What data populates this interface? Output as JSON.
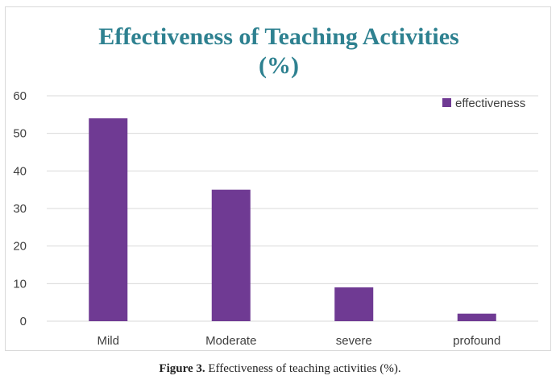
{
  "chart_data": {
    "type": "bar",
    "title_line1": "Effectiveness of Teaching Activities",
    "title_line2": "(%)",
    "categories": [
      "Mild",
      "Moderate",
      "severe",
      "profound"
    ],
    "series": [
      {
        "name": "effectiveness",
        "values": [
          54,
          35,
          9,
          2
        ]
      }
    ],
    "ylim": [
      0,
      60
    ],
    "yticks": [
      0,
      10,
      20,
      30,
      40,
      50,
      60
    ],
    "grid": true,
    "legend": "top-right",
    "colors": {
      "bar": "#6f3a93",
      "title": "#2e8190",
      "grid": "#d9d9d9",
      "axis_text": "#404040"
    }
  },
  "caption": {
    "label": "Figure 3.",
    "text": " Effectiveness of teaching activities (%)."
  }
}
